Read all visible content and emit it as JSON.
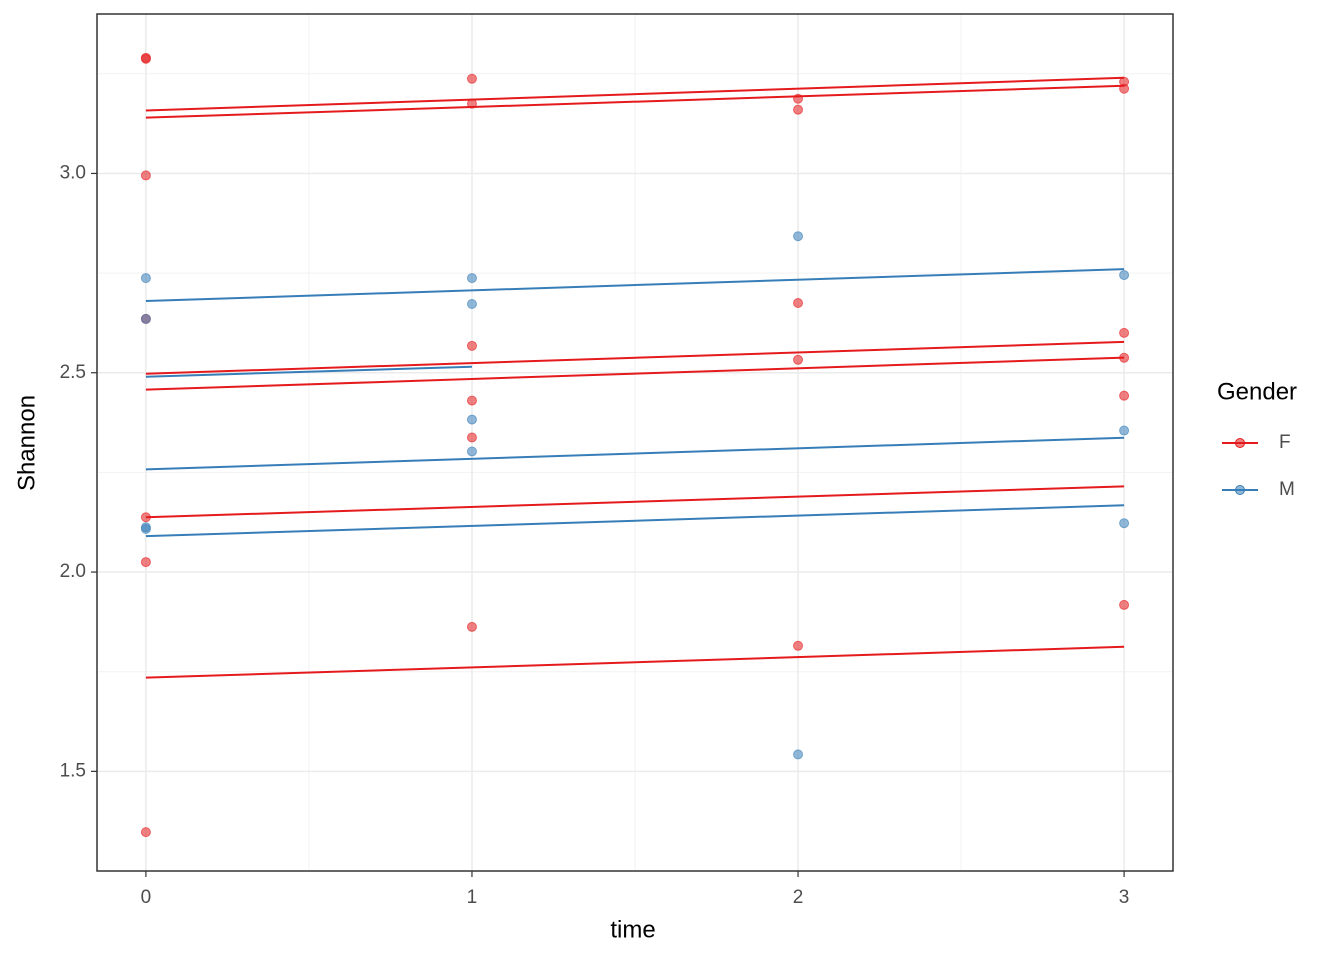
{
  "chart_data": {
    "type": "scatter",
    "x_label": "time",
    "y_label": "Shannon",
    "xlim": [
      -0.15,
      3.15
    ],
    "ylim": [
      1.25,
      3.4
    ],
    "xticks": [
      0,
      1,
      2,
      3
    ],
    "yticks": [
      {
        "value": 1.5,
        "label": "1.5"
      },
      {
        "value": 2,
        "label": "2.0"
      },
      {
        "value": 2.5,
        "label": "2.5"
      },
      {
        "value": 3,
        "label": "3.0"
      }
    ],
    "x_minor_grid": [
      0.5,
      1.5,
      2.5
    ],
    "y_minor_grid": [
      1.75,
      2.25,
      2.75,
      3.25
    ],
    "grid": true,
    "legend_title": "Gender",
    "legend_position": "right",
    "series": [
      {
        "name": "F",
        "color": "#E41A1C",
        "x": [
          0,
          0,
          0,
          0,
          0,
          0,
          0,
          1,
          1,
          1,
          1,
          1,
          1,
          2,
          2,
          2,
          2,
          2,
          3,
          3,
          3,
          3,
          3,
          3
        ],
        "values": [
          3.29,
          3.2875,
          2.995,
          2.635,
          2.1375,
          2.025,
          1.3475,
          3.2375,
          3.175,
          2.5675,
          2.43,
          2.3375,
          1.8625,
          3.1875,
          3.16,
          2.675,
          2.5325,
          1.815,
          3.23,
          3.2125,
          2.6,
          2.5375,
          2.4425,
          1.9175
        ],
        "lines": [
          {
            "x": [
              0,
              3
            ],
            "values": [
              3.158,
              3.24
            ]
          },
          {
            "x": [
              0,
              3
            ],
            "values": [
              3.14,
              3.22
            ]
          },
          {
            "x": [
              0,
              3
            ],
            "values": [
              2.4975,
              2.5775
            ]
          },
          {
            "x": [
              0,
              3
            ],
            "values": [
              2.4575,
              2.538
            ]
          },
          {
            "x": [
              0,
              3
            ],
            "values": [
              2.1375,
              2.215
            ]
          },
          {
            "x": [
              0,
              3
            ],
            "values": [
              1.735,
              1.8125
            ]
          }
        ]
      },
      {
        "name": "M",
        "color": "#377EB8",
        "x": [
          0,
          0,
          0,
          0,
          1,
          1,
          1,
          1,
          2,
          2,
          3,
          3,
          3
        ],
        "values": [
          2.7375,
          2.635,
          2.1125,
          2.108,
          2.7375,
          2.6725,
          2.3825,
          2.3025,
          2.8425,
          1.5425,
          2.745,
          2.355,
          2.1225
        ],
        "lines": [
          {
            "x": [
              0,
              3
            ],
            "values": [
              2.68,
              2.76
            ]
          },
          {
            "x": [
              0,
              1
            ],
            "values": [
              2.49,
              2.515
            ]
          },
          {
            "x": [
              0,
              3
            ],
            "values": [
              2.2575,
              2.337
            ]
          },
          {
            "x": [
              0,
              3
            ],
            "values": [
              2.09,
              2.1675
            ]
          }
        ]
      }
    ]
  }
}
